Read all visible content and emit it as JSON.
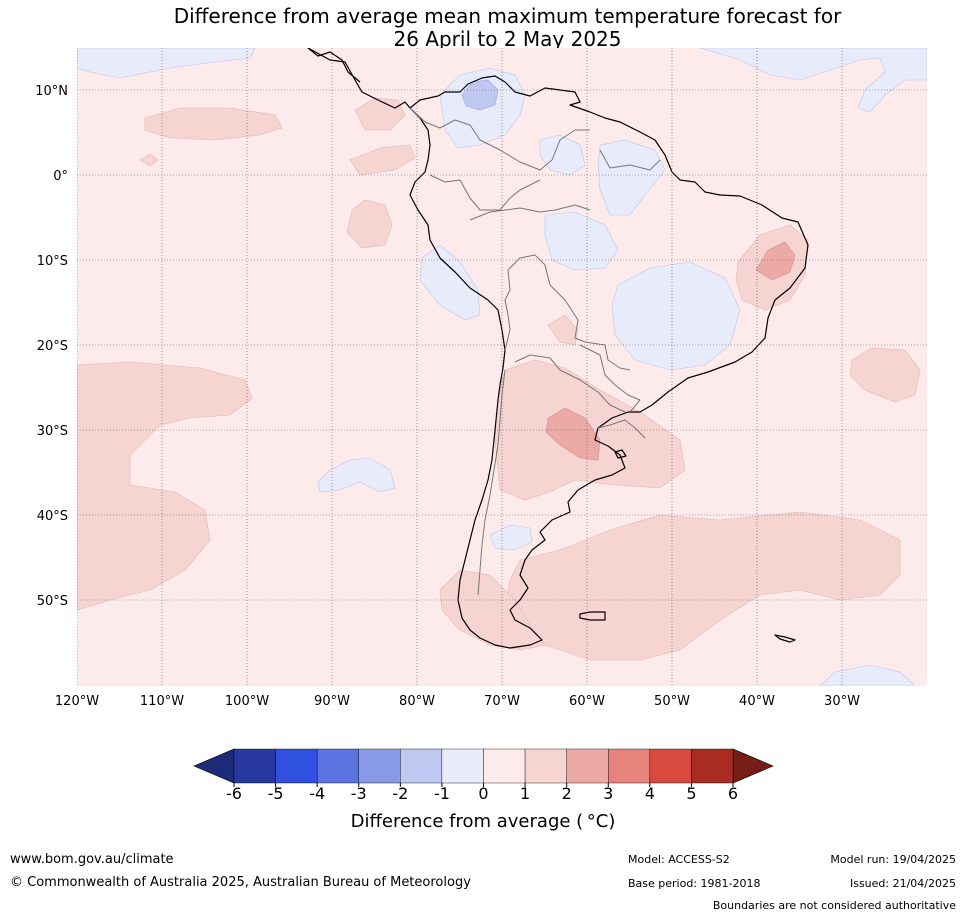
{
  "title": {
    "line1": "Difference from average mean maximum temperature forecast for",
    "line2": "26 April to 2 May 2025"
  },
  "map": {
    "lat_labels": [
      "10°N",
      "0°",
      "10°S",
      "20°S",
      "30°S",
      "40°S",
      "50°S"
    ],
    "lon_labels": [
      "120°W",
      "110°W",
      "100°W",
      "90°W",
      "80°W",
      "70°W",
      "60°W",
      "50°W",
      "40°W",
      "30°W"
    ]
  },
  "colorbar": {
    "ticks": [
      "-6",
      "-5",
      "-4",
      "-3",
      "-2",
      "-1",
      "0",
      "1",
      "2",
      "3",
      "4",
      "5",
      "6"
    ],
    "colors": [
      "#27399f",
      "#3050e0",
      "#5a73e0",
      "#8899e6",
      "#c0c8f2",
      "#e8ebfa",
      "#fcebea",
      "#f5d4d2",
      "#ecaaa6",
      "#e6837c",
      "#d84a3e",
      "#a82c22"
    ],
    "low_extend_color": "#1c2a78",
    "high_extend_color": "#761d18",
    "label": "Difference from average ( °C)"
  },
  "footer": {
    "website": "www.bom.gov.au/climate",
    "copyright": "© Commonwealth of Australia 2025, Australian Bureau of Meteorology",
    "model": "Model: ACCESS-S2",
    "base_period": "Base period: 1981-2018",
    "model_run": "Model run: 19/04/2025",
    "issued": "Issued: 21/04/2025",
    "disclaimer": "Boundaries are not considered authoritative"
  }
}
